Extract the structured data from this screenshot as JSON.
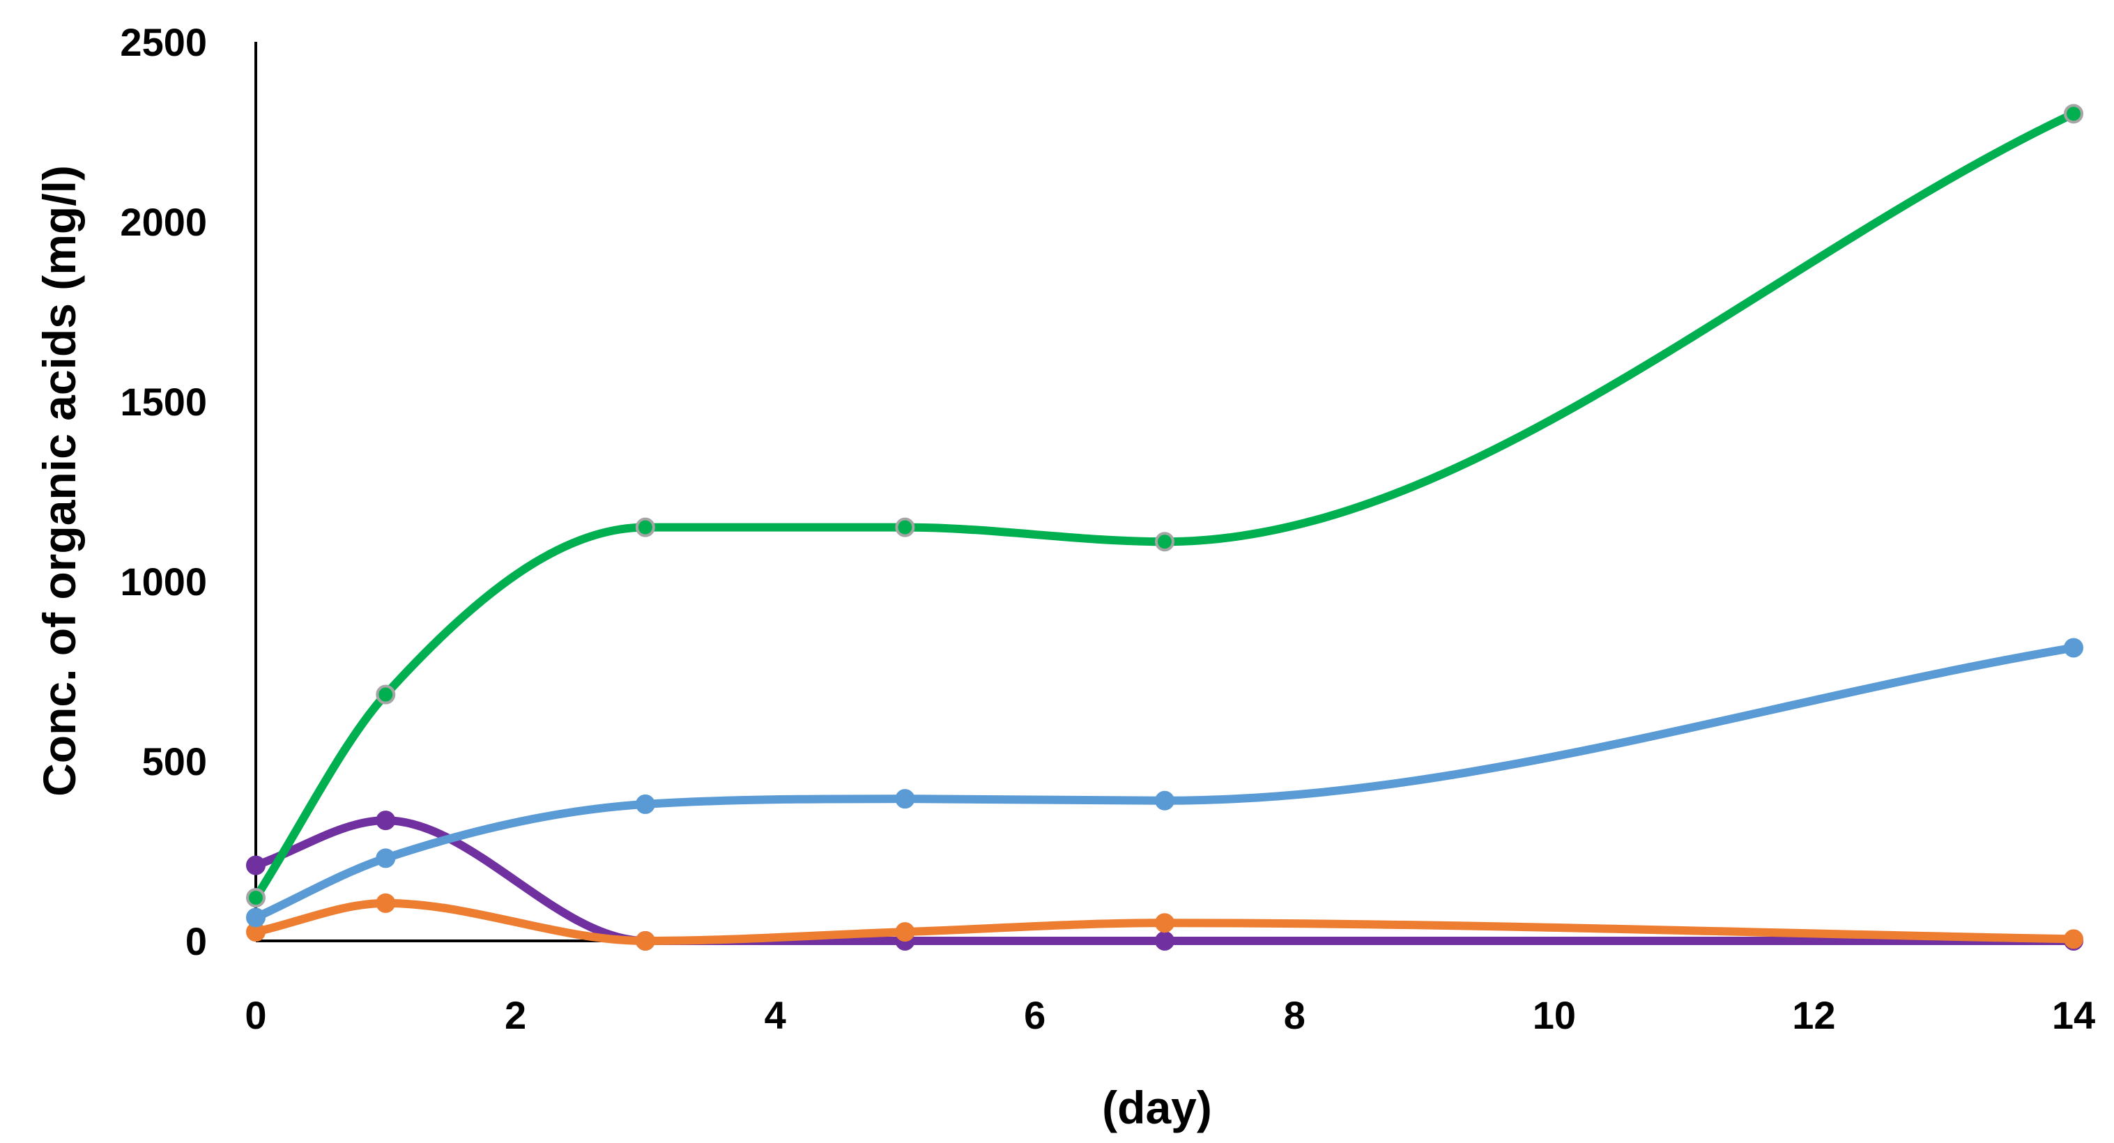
{
  "chart_data": {
    "type": "line",
    "title": "",
    "xlabel": "(day)",
    "ylabel": "Conc. of organic acids (mg/l)",
    "xlim": [
      0,
      14
    ],
    "ylim": [
      0,
      2500
    ],
    "x_ticks": [
      0,
      2,
      4,
      6,
      8,
      10,
      12,
      14
    ],
    "y_ticks": [
      0,
      500,
      1000,
      1500,
      2000,
      2500
    ],
    "grid": false,
    "legend": "none",
    "series": [
      {
        "color": "#7030A0",
        "marker_edge": "#7030A0",
        "points": [
          [
            0,
            210
          ],
          [
            1,
            335
          ],
          [
            3,
            0
          ],
          [
            5,
            0
          ],
          [
            7,
            0
          ],
          [
            14,
            0
          ]
        ]
      },
      {
        "color": "#ED7D31",
        "marker_edge": "#ED7D31",
        "points": [
          [
            0,
            25
          ],
          [
            1,
            105
          ],
          [
            3,
            0
          ],
          [
            5,
            25
          ],
          [
            7,
            50
          ],
          [
            14,
            5
          ]
        ]
      },
      {
        "color": "#5B9BD5",
        "marker_edge": "#5B9BD5",
        "points": [
          [
            0,
            65
          ],
          [
            1,
            230
          ],
          [
            3,
            380
          ],
          [
            5,
            395
          ],
          [
            7,
            390
          ],
          [
            14,
            815
          ]
        ]
      },
      {
        "color": "#00B050",
        "marker_edge": "#A5A5A5",
        "points": [
          [
            0,
            120
          ],
          [
            1,
            685
          ],
          [
            3,
            1150
          ],
          [
            5,
            1150
          ],
          [
            7,
            1110
          ],
          [
            14,
            2300
          ]
        ]
      }
    ]
  }
}
